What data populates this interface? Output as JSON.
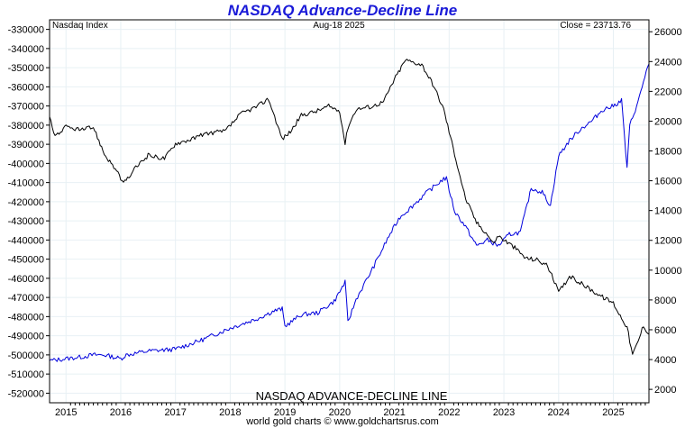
{
  "title": "NASDAQ Advance-Decline Line",
  "header": {
    "left": "Nasdaq Index",
    "center": "Aug-18  2025",
    "right": "Close = 23713.76"
  },
  "bottom_label": "NASDAQ ADVANCE-DECLINE LINE",
  "footer": "world gold charts © www.goldchartsrus.com",
  "colors": {
    "title": "#1a1ad8",
    "ad_line": "#0000dd",
    "index_line": "#000000",
    "grid": "#e8f0f4"
  },
  "chart_data": {
    "type": "line",
    "x_tick_labels": [
      "2015",
      "2016",
      "2017",
      "2018",
      "2019",
      "2020",
      "2021",
      "2022",
      "2023",
      "2024",
      "2025"
    ],
    "left_axis": {
      "ylim": [
        -525000,
        -325000
      ],
      "ticks": [
        -330000,
        -340000,
        -350000,
        -360000,
        -370000,
        -380000,
        -390000,
        -400000,
        -410000,
        -420000,
        -430000,
        -440000,
        -450000,
        -460000,
        -470000,
        -480000,
        -490000,
        -500000,
        -510000,
        -520000
      ],
      "tick_labels": [
        "-330000",
        "-340000",
        "-350000",
        "-360000",
        "-370000",
        "-380000",
        "-390000",
        "-400000",
        "-410000",
        "-420000",
        "-430000",
        "-440000",
        "-450000",
        "-460000",
        "-470000",
        "-480000",
        "-490000",
        "-500000",
        "-510000",
        "-520000"
      ]
    },
    "right_axis": {
      "ylim": [
        1100,
        26800
      ],
      "ticks": [
        26000,
        24000,
        22000,
        20000,
        18000,
        16000,
        14000,
        12000,
        10000,
        8000,
        6000,
        4000,
        2000
      ],
      "tick_labels": [
        "26000",
        "24000",
        "22000",
        "20000",
        "18000",
        "16000",
        "14000",
        "12000",
        "10000",
        "8000",
        "6000",
        "4000",
        "2000"
      ]
    },
    "xlim": [
      2014.7,
      2025.65
    ],
    "series": [
      {
        "name": "NASDAQ ADVANCE-DECLINE LINE",
        "axis": "left",
        "color": "#0000dd",
        "x": [
          2014.7,
          2015.0,
          2015.3,
          2015.5,
          2015.7,
          2016.0,
          2016.1,
          2016.5,
          2017.0,
          2017.5,
          2018.0,
          2018.5,
          2018.8,
          2018.95,
          2019.0,
          2019.3,
          2019.6,
          2019.9,
          2020.1,
          2020.15,
          2020.3,
          2020.6,
          2020.9,
          2021.1,
          2021.3,
          2021.6,
          2021.9,
          2021.95,
          2022.1,
          2022.3,
          2022.5,
          2022.7,
          2022.9,
          2023.1,
          2023.3,
          2023.5,
          2023.7,
          2023.85,
          2024.0,
          2024.2,
          2024.4,
          2024.6,
          2024.8,
          2025.0,
          2025.15,
          2025.25,
          2025.3,
          2025.45,
          2025.6,
          2025.65
        ],
        "y": [
          -503000,
          -502000,
          -501000,
          -500000,
          -500000,
          -502000,
          -500000,
          -498000,
          -497000,
          -492000,
          -486000,
          -481000,
          -477000,
          -476000,
          -485000,
          -479000,
          -478000,
          -472000,
          -462000,
          -483000,
          -471000,
          -455000,
          -438000,
          -428000,
          -423000,
          -415000,
          -408000,
          -408000,
          -425000,
          -433000,
          -443000,
          -440000,
          -443000,
          -437000,
          -436000,
          -413000,
          -415000,
          -422000,
          -396000,
          -388000,
          -382000,
          -378000,
          -372000,
          -370000,
          -367000,
          -403000,
          -380000,
          -368000,
          -352000,
          -348000
        ]
      },
      {
        "name": "Nasdaq Index",
        "axis": "right",
        "color": "#000000",
        "x": [
          2014.7,
          2014.8,
          2015.0,
          2015.3,
          2015.5,
          2015.7,
          2015.9,
          2016.05,
          2016.1,
          2016.3,
          2016.5,
          2016.8,
          2017.0,
          2017.3,
          2017.6,
          2017.9,
          2018.2,
          2018.5,
          2018.7,
          2018.95,
          2019.1,
          2019.3,
          2019.6,
          2019.8,
          2020.0,
          2020.1,
          2020.15,
          2020.3,
          2020.6,
          2020.8,
          2021.0,
          2021.2,
          2021.5,
          2021.7,
          2021.9,
          2022.1,
          2022.3,
          2022.5,
          2022.7,
          2022.8,
          2022.9,
          2023.2,
          2023.4,
          2023.6,
          2023.8,
          2024.0,
          2024.2,
          2024.5,
          2024.8,
          2025.0,
          2025.1,
          2025.25,
          2025.35,
          2025.45,
          2025.55,
          2025.65
        ],
        "y": [
          20300,
          19000,
          19600,
          19400,
          19600,
          17800,
          16800,
          15800,
          16000,
          17000,
          17700,
          17500,
          18500,
          18800,
          19200,
          19300,
          20500,
          21000,
          21500,
          18800,
          19300,
          20400,
          20700,
          21000,
          20700,
          18500,
          19600,
          20800,
          21000,
          21300,
          22800,
          24100,
          23800,
          22500,
          20800,
          17800,
          14800,
          13200,
          12400,
          11800,
          12300,
          11500,
          10800,
          10700,
          10300,
          8500,
          9600,
          8900,
          8200,
          7800,
          7100,
          6200,
          4300,
          5200,
          6300,
          5700
        ]
      }
    ]
  }
}
